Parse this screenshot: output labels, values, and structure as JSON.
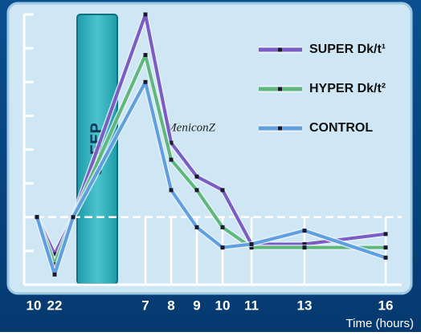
{
  "chart_data": {
    "type": "line",
    "categories": [
      "10",
      "22",
      null,
      "7",
      "8",
      "9",
      "10",
      "11",
      "13",
      "16"
    ],
    "x_label": "Time (hours)",
    "annotations": [
      "SLEEP",
      "MeniconZ"
    ],
    "ylim": [
      0,
      8
    ],
    "yticks": [
      0,
      1,
      2,
      3,
      4,
      5,
      6,
      7,
      8
    ],
    "baseline": 2,
    "series": [
      {
        "name": "SUPER Dk/t¹",
        "color": "#7a5cc4",
        "values": [
          2,
          0.9,
          2,
          8,
          4.2,
          3.2,
          2.8,
          1.2,
          1.2,
          1.5
        ]
      },
      {
        "name": "HYPER Dk/t²",
        "color": "#5fb87a",
        "values": [
          2,
          0.6,
          2,
          6.8,
          3.7,
          2.8,
          1.7,
          1.1,
          1.1,
          1.1
        ]
      },
      {
        "name": "CONTROL",
        "color": "#5f9fe0",
        "values": [
          2,
          0.3,
          2,
          6,
          2.8,
          1.7,
          1.1,
          1.2,
          1.6,
          0.8
        ]
      }
    ]
  }
}
